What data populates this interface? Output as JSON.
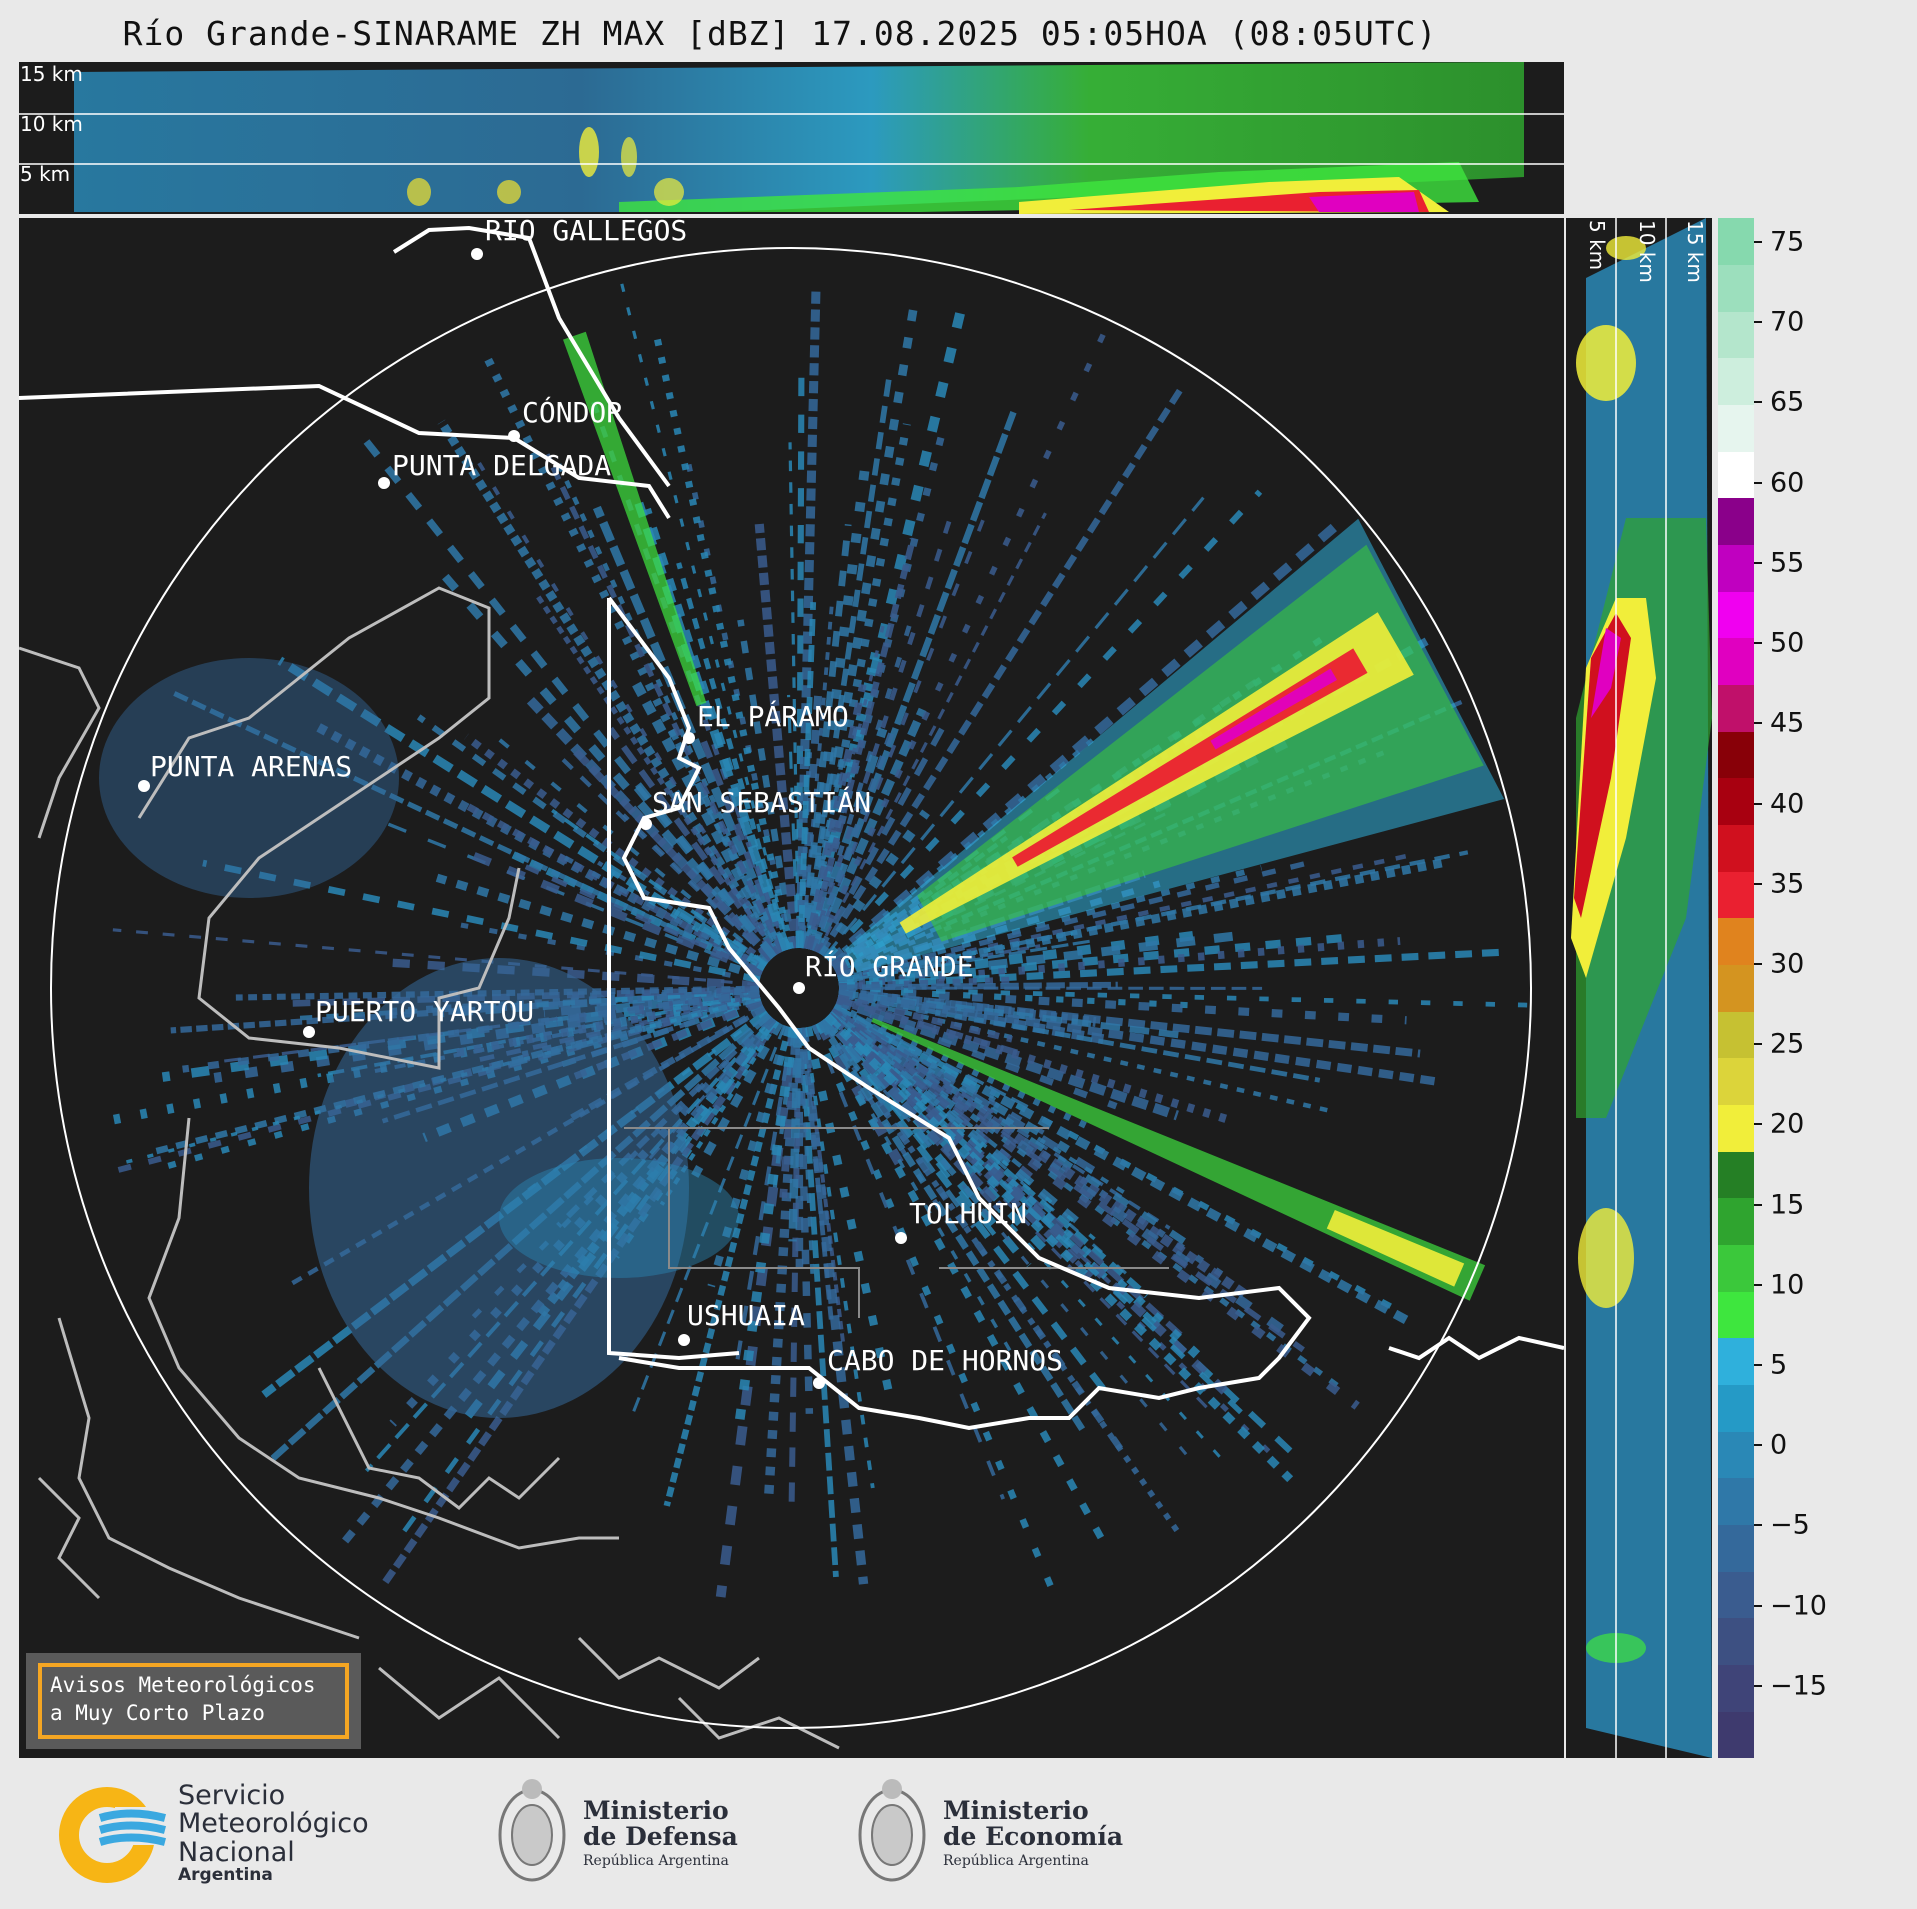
{
  "title": "Río Grande-SINARAME ZH MAX [dBZ] 17.08.2025 05:05HOA (08:05UTC)",
  "top_panel": {
    "altitudes": [
      "15 km",
      "10 km",
      "5 km"
    ]
  },
  "side_panel": {
    "altitudes": [
      "5 km",
      "10 km",
      "15 km"
    ]
  },
  "map": {
    "places": [
      {
        "name": "RÍO GALLEGOS"
      },
      {
        "name": "CÓNDOR"
      },
      {
        "name": "PUNTA DELGADA"
      },
      {
        "name": "EL PÁRAMO"
      },
      {
        "name": "PUNTA ARENAS"
      },
      {
        "name": "SAN SEBASTIÁN"
      },
      {
        "name": "RÍO GRANDE"
      },
      {
        "name": "PUERTO YARTOU"
      },
      {
        "name": "TOLHUIN"
      },
      {
        "name": "USHUAIA"
      },
      {
        "name": "CABO DE HORNOS"
      }
    ],
    "warning_box": {
      "line1": "Avisos Meteorológicos",
      "line2": "a Muy Corto Plazo",
      "border_color": "#f5a623"
    }
  },
  "colorbar": {
    "unit": "dBZ",
    "ticks": [
      "75",
      "70",
      "65",
      "60",
      "55",
      "50",
      "45",
      "40",
      "35",
      "30",
      "25",
      "20",
      "15",
      "10",
      "5",
      "0",
      "−5",
      "−10",
      "−15"
    ],
    "colors": [
      "#3e3a6e",
      "#3f4478",
      "#3d5082",
      "#3a5c8f",
      "#34699b",
      "#2f78a8",
      "#2a88b6",
      "#259ac6",
      "#2fb0dc",
      "#3ee63e",
      "#3bc83b",
      "#2fa42f",
      "#257f25",
      "#f1ee3a",
      "#dcd43a",
      "#c6c132",
      "#d49420",
      "#e0831e",
      "#ea2030",
      "#d0101e",
      "#a80010",
      "#880008",
      "#c0106a",
      "#e000c0",
      "#f000f0",
      "#c000c0",
      "#8a008a",
      "#ffffff",
      "#e6f5ee",
      "#cdeedd",
      "#b4e6cc",
      "#9cdfbd",
      "#86d9ae"
    ]
  },
  "footer": {
    "smn": {
      "line1": "Servicio",
      "line2": "Meteorológico",
      "line3": "Nacional",
      "line4": "Argentina"
    },
    "defensa": {
      "line1": "Ministerio",
      "line2": "de Defensa",
      "line3": "República Argentina"
    },
    "economia": {
      "line1": "Ministerio",
      "line2": "de Economía",
      "line3": "República Argentina"
    }
  }
}
